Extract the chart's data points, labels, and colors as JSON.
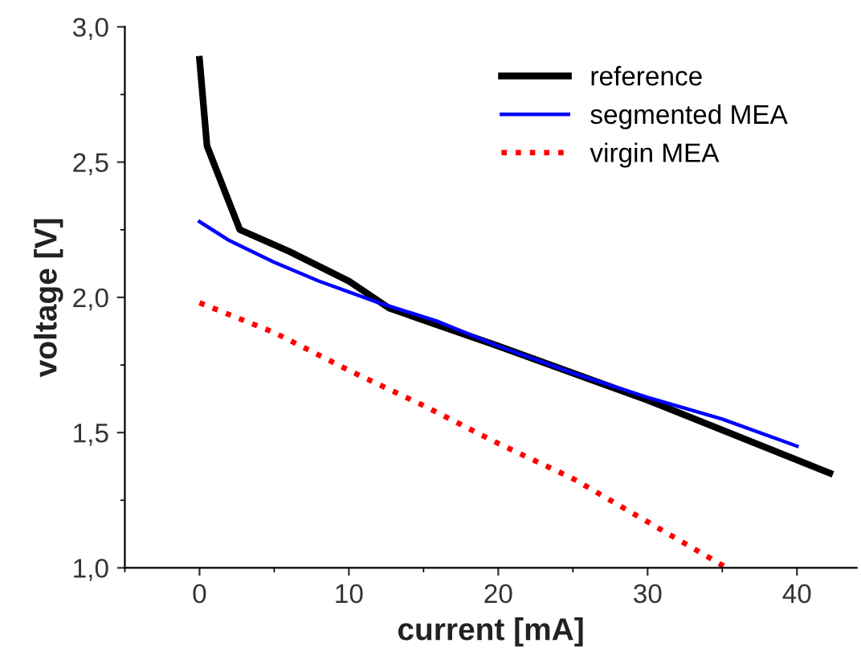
{
  "chart_data": {
    "type": "line",
    "xlabel": "current [mA]",
    "ylabel": "voltage [V]",
    "xlim": [
      -5,
      44
    ],
    "ylim": [
      1.0,
      3.0
    ],
    "xticks": [
      0,
      10,
      20,
      30,
      40
    ],
    "yticks": [
      {
        "value": 1.0,
        "label": "1,0"
      },
      {
        "value": 1.5,
        "label": "1,5"
      },
      {
        "value": 2.0,
        "label": "2,0"
      },
      {
        "value": 2.5,
        "label": "2,5"
      },
      {
        "value": 3.0,
        "label": "3,0"
      }
    ],
    "grid": false,
    "legend": "top right",
    "marker": "none",
    "series": [
      {
        "name": "reference",
        "color": "#000000",
        "line_style": "solid",
        "x": [
          0,
          0.5,
          2.7,
          6,
          10,
          12.7,
          20,
          30,
          42.2
        ],
        "values": [
          2.88,
          2.56,
          2.25,
          2.17,
          2.06,
          1.96,
          1.82,
          1.62,
          1.35
        ]
      },
      {
        "name": "segmented MEA",
        "color": "#0000ff",
        "line_style": "solid",
        "x": [
          0,
          2,
          5,
          8,
          12,
          16,
          20,
          25,
          30,
          35,
          40
        ],
        "values": [
          2.28,
          2.21,
          2.13,
          2.06,
          1.98,
          1.91,
          1.82,
          1.72,
          1.63,
          1.55,
          1.45
        ]
      },
      {
        "name": "virgin MEA",
        "color": "#ff0000",
        "line_style": "dotted",
        "x": [
          0,
          5,
          10,
          15,
          20,
          25,
          30,
          35.3
        ],
        "values": [
          1.98,
          1.87,
          1.73,
          1.6,
          1.46,
          1.33,
          1.17,
          1.0
        ]
      }
    ]
  }
}
